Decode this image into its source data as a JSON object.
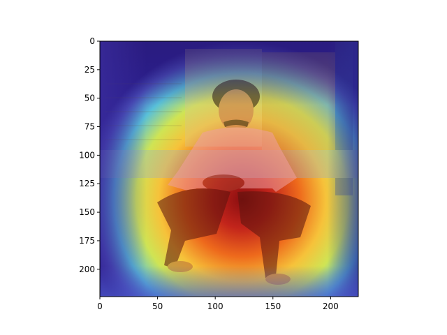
{
  "image": {
    "description_icon": "heatmap-overlay-photo",
    "subject_icon": "seated-man-icon",
    "colormap": "jet",
    "extent": {
      "xmin": 0,
      "xmax": 224,
      "ymin": 0,
      "ymax": 224
    }
  },
  "axes": {
    "x": {
      "ticks": [
        0,
        50,
        100,
        150,
        200
      ],
      "labels": [
        "0",
        "50",
        "100",
        "150",
        "200"
      ]
    },
    "y": {
      "ticks": [
        0,
        25,
        50,
        75,
        100,
        125,
        150,
        175,
        200
      ],
      "labels": [
        "0",
        "25",
        "50",
        "75",
        "100",
        "125",
        "150",
        "175",
        "200"
      ]
    }
  },
  "colors": {
    "jet_low": "#2b1f8f",
    "jet_mid_low": "#3aa7d6",
    "jet_mid": "#d8e24a",
    "jet_mid_high": "#f07a1e",
    "jet_high": "#b3171a"
  }
}
